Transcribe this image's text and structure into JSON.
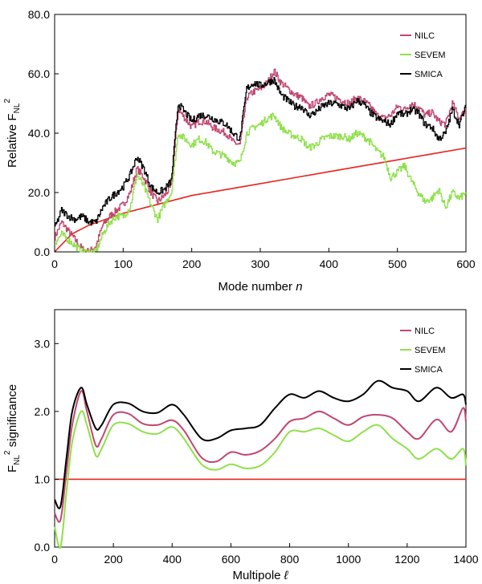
{
  "colors": {
    "nilc": "#c0476e",
    "sevem": "#8fe04a",
    "smica": "#000000",
    "reference": "#e8231b"
  },
  "chart_data": [
    {
      "type": "line",
      "xlabel": "Mode number ",
      "xlabel_italic": "n",
      "ylabel": "Relative F",
      "ylabel_sub": "NL",
      "ylabel_sup": "2",
      "xlim": [
        0,
        600
      ],
      "ylim": [
        0,
        80
      ],
      "xticks": [
        0,
        100,
        200,
        300,
        400,
        500,
        600
      ],
      "xtick_labels": [
        "0",
        "100",
        "200",
        "300",
        "400",
        "500",
        "600"
      ],
      "yticks": [
        0,
        20,
        40,
        60,
        80
      ],
      "ytick_labels": [
        "0.0",
        "20.0",
        "40.0",
        "60.0",
        "80.0"
      ],
      "legend_placement": "top-right",
      "series": [
        {
          "name": "NILC",
          "key": "nilc",
          "x": [
            0,
            10,
            20,
            30,
            40,
            50,
            60,
            70,
            80,
            90,
            100,
            110,
            120,
            130,
            140,
            150,
            160,
            170,
            180,
            190,
            200,
            210,
            220,
            230,
            240,
            250,
            260,
            270,
            280,
            290,
            300,
            310,
            320,
            330,
            340,
            350,
            360,
            370,
            380,
            390,
            400,
            410,
            420,
            430,
            440,
            450,
            460,
            470,
            480,
            490,
            500,
            510,
            520,
            530,
            540,
            550,
            560,
            570,
            580,
            590,
            600
          ],
          "y": [
            5,
            10,
            7,
            4,
            1,
            0,
            2,
            9,
            12,
            14,
            16,
            20,
            28,
            25,
            20,
            17,
            19,
            22,
            48,
            45,
            42,
            44,
            44,
            42,
            41,
            40,
            37,
            36,
            52,
            54,
            55,
            57,
            61,
            57,
            55,
            53,
            52,
            49,
            50,
            52,
            53,
            52,
            51,
            50,
            52,
            51,
            49,
            46,
            45,
            46,
            49,
            48,
            50,
            49,
            46,
            47,
            44,
            43,
            50,
            45,
            48
          ]
        },
        {
          "name": "SEVEM",
          "key": "sevem",
          "x": [
            0,
            10,
            20,
            30,
            40,
            50,
            60,
            70,
            80,
            90,
            100,
            110,
            120,
            130,
            140,
            150,
            160,
            170,
            180,
            190,
            200,
            210,
            220,
            230,
            240,
            250,
            260,
            270,
            280,
            290,
            300,
            310,
            320,
            330,
            340,
            350,
            360,
            370,
            380,
            390,
            400,
            410,
            420,
            430,
            440,
            450,
            460,
            470,
            480,
            490,
            500,
            510,
            520,
            530,
            540,
            550,
            560,
            570,
            580,
            590,
            600
          ],
          "y": [
            3,
            6,
            4,
            2,
            0,
            0,
            0,
            6,
            10,
            12,
            12,
            15,
            26,
            22,
            16,
            11,
            16,
            20,
            40,
            38,
            36,
            38,
            37,
            34,
            33,
            32,
            30,
            30,
            40,
            42,
            43,
            45,
            46,
            42,
            40,
            39,
            38,
            35,
            36,
            38,
            39,
            39,
            39,
            38,
            40,
            39,
            37,
            34,
            32,
            25,
            27,
            29,
            24,
            20,
            17,
            18,
            21,
            15,
            20,
            18,
            20
          ]
        },
        {
          "name": "SMICA",
          "key": "smica",
          "x": [
            0,
            10,
            20,
            30,
            40,
            50,
            60,
            70,
            80,
            90,
            100,
            110,
            120,
            130,
            140,
            150,
            160,
            170,
            180,
            190,
            200,
            210,
            220,
            230,
            240,
            250,
            260,
            270,
            280,
            290,
            300,
            310,
            320,
            330,
            340,
            350,
            360,
            370,
            380,
            390,
            400,
            410,
            420,
            430,
            440,
            450,
            460,
            470,
            480,
            490,
            500,
            510,
            520,
            530,
            540,
            550,
            560,
            570,
            580,
            590,
            600
          ],
          "y": [
            8,
            14,
            12,
            11,
            12,
            10,
            10,
            15,
            18,
            20,
            22,
            26,
            32,
            28,
            22,
            20,
            21,
            24,
            50,
            47,
            44,
            46,
            46,
            45,
            44,
            43,
            40,
            38,
            55,
            57,
            56,
            57,
            58,
            53,
            51,
            49,
            49,
            46,
            47,
            49,
            50,
            50,
            49,
            48,
            51,
            50,
            47,
            45,
            44,
            43,
            47,
            46,
            48,
            47,
            43,
            42,
            38,
            40,
            48,
            43,
            49
          ]
        }
      ],
      "reference": {
        "key": "reference",
        "x": [
          0,
          25,
          50,
          75,
          100,
          150,
          200,
          250,
          300,
          350,
          400,
          450,
          500,
          550,
          600
        ],
        "y": [
          0,
          6,
          9,
          11,
          13,
          16,
          19,
          21,
          23,
          25,
          27,
          29,
          31,
          33,
          35
        ]
      }
    },
    {
      "type": "line",
      "xlabel": "Multipole ",
      "xlabel_italic": "ℓ",
      "ylabel": "F",
      "ylabel_sub": "NL",
      "ylabel_sup": "2",
      "ylabel_rest": " significance",
      "xlim": [
        0,
        1400
      ],
      "ylim": [
        0,
        3.5
      ],
      "xticks": [
        0,
        200,
        400,
        600,
        800,
        1000,
        1200,
        1400
      ],
      "xtick_labels": [
        "0",
        "200",
        "400",
        "600",
        "800",
        "1000",
        "1200",
        "1400"
      ],
      "yticks": [
        0,
        1,
        2,
        3
      ],
      "ytick_labels": [
        "0.0",
        "1.0",
        "2.0",
        "3.0"
      ],
      "legend_placement": "top-right",
      "series": [
        {
          "name": "NILC",
          "key": "nilc",
          "x": [
            0,
            20,
            40,
            60,
            90,
            110,
            140,
            160,
            200,
            250,
            300,
            350,
            400,
            440,
            500,
            550,
            600,
            650,
            700,
            750,
            800,
            850,
            900,
            950,
            1000,
            1050,
            1100,
            1150,
            1200,
            1240,
            1300,
            1350,
            1390,
            1400
          ],
          "y": [
            0.5,
            0.4,
            1.1,
            1.8,
            2.3,
            2.0,
            1.5,
            1.6,
            1.95,
            1.97,
            1.82,
            1.8,
            1.87,
            1.72,
            1.32,
            1.26,
            1.4,
            1.36,
            1.42,
            1.6,
            1.85,
            1.9,
            2.0,
            1.9,
            1.8,
            1.92,
            1.95,
            1.9,
            1.7,
            1.6,
            1.88,
            1.7,
            2.05,
            1.85
          ]
        },
        {
          "name": "SEVEM",
          "key": "sevem",
          "x": [
            0,
            20,
            40,
            60,
            90,
            110,
            140,
            160,
            200,
            250,
            300,
            350,
            400,
            440,
            500,
            550,
            600,
            650,
            700,
            750,
            800,
            850,
            900,
            950,
            1000,
            1050,
            1100,
            1150,
            1200,
            1240,
            1300,
            1350,
            1390,
            1400
          ],
          "y": [
            0.3,
            0.0,
            0.8,
            1.55,
            2.0,
            1.8,
            1.35,
            1.45,
            1.8,
            1.82,
            1.7,
            1.67,
            1.77,
            1.6,
            1.22,
            1.14,
            1.22,
            1.16,
            1.2,
            1.4,
            1.7,
            1.7,
            1.75,
            1.65,
            1.56,
            1.7,
            1.8,
            1.6,
            1.45,
            1.3,
            1.45,
            1.3,
            1.45,
            1.2
          ]
        },
        {
          "name": "SMICA",
          "key": "smica",
          "x": [
            0,
            20,
            40,
            60,
            90,
            110,
            140,
            160,
            200,
            250,
            300,
            350,
            400,
            440,
            500,
            550,
            600,
            650,
            700,
            750,
            800,
            850,
            900,
            950,
            1000,
            1050,
            1100,
            1150,
            1200,
            1240,
            1300,
            1350,
            1390,
            1400
          ],
          "y": [
            0.7,
            0.6,
            1.3,
            2.0,
            2.35,
            2.1,
            1.75,
            1.8,
            2.1,
            2.12,
            2.0,
            1.98,
            2.1,
            1.95,
            1.6,
            1.6,
            1.72,
            1.75,
            1.8,
            2.05,
            2.25,
            2.2,
            2.3,
            2.2,
            2.15,
            2.25,
            2.45,
            2.35,
            2.3,
            2.15,
            2.35,
            2.2,
            2.25,
            2.1
          ]
        }
      ],
      "reference": {
        "key": "reference",
        "x": [
          0,
          1400
        ],
        "y": [
          1,
          1
        ]
      }
    }
  ]
}
